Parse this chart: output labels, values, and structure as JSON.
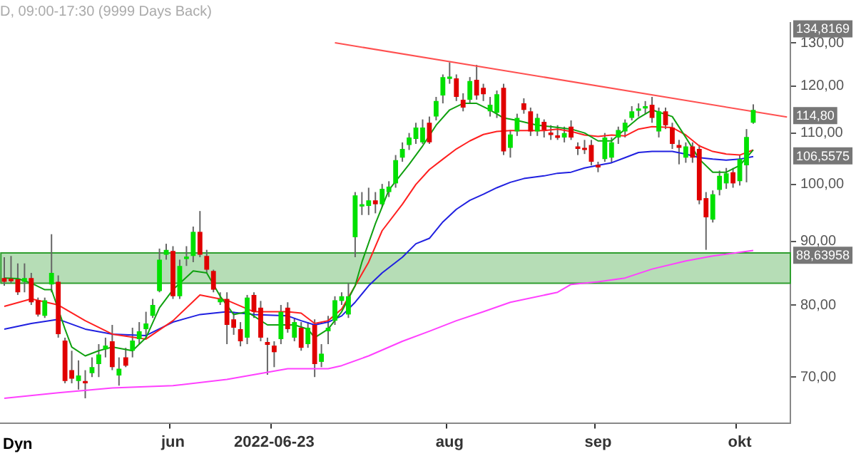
{
  "chart_data": {
    "type": "candlestick",
    "title": "D, 09:00-17:30 (9999 Days Back)",
    "log": true,
    "categories": [
      null,
      null,
      null,
      null,
      null,
      null,
      null,
      null,
      null,
      null,
      null,
      null,
      null,
      null,
      null,
      null,
      null,
      null,
      null,
      null,
      null,
      null,
      null,
      null,
      null,
      "jun",
      null,
      null,
      null,
      null,
      null,
      null,
      null,
      null,
      null,
      null,
      null,
      null,
      null,
      null,
      "2022-06-23",
      null,
      null,
      null,
      null,
      null,
      null,
      null,
      null,
      null,
      null,
      null,
      null,
      null,
      null,
      null,
      null,
      null,
      null,
      null,
      null,
      null,
      null,
      null,
      null,
      null,
      "aug",
      null,
      null,
      null,
      null,
      null,
      null,
      null,
      null,
      null,
      null,
      null,
      null,
      null,
      null,
      null,
      null,
      null,
      null,
      null,
      null,
      null,
      "sep",
      null,
      null,
      null,
      null,
      null,
      null,
      null,
      null,
      null,
      null,
      null,
      null,
      null,
      null,
      null,
      null,
      null,
      null,
      null,
      null,
      "okt",
      null,
      null,
      null,
      null,
      null,
      null,
      null
    ],
    "ohlc": [
      [
        84.1,
        87.4,
        82.9,
        83.5
      ],
      [
        84.0,
        87.6,
        83.3,
        83.6
      ],
      [
        83.9,
        86.4,
        81.5,
        81.9
      ],
      [
        83.5,
        86.4,
        81.9,
        84.1
      ],
      [
        84.1,
        84.9,
        80.0,
        80.4
      ],
      [
        80.7,
        81.1,
        78.3,
        78.6
      ],
      [
        78.4,
        81.1,
        78.1,
        80.7
      ],
      [
        83.1,
        91.2,
        81.9,
        84.9
      ],
      [
        83.5,
        84.5,
        75.3,
        75.8
      ],
      [
        74.9,
        75.3,
        69.2,
        69.5
      ],
      [
        70.9,
        73.5,
        69.2,
        69.8
      ],
      [
        69.5,
        72.2,
        68.4,
        70.2
      ],
      [
        69.5,
        70.9,
        67.3,
        69.2
      ],
      [
        70.5,
        72.6,
        70.0,
        71.3
      ],
      [
        71.7,
        74.4,
        70.0,
        73.0
      ],
      [
        73.7,
        75.3,
        72.6,
        74.2
      ],
      [
        74.8,
        77.1,
        70.9,
        71.3
      ],
      [
        70.2,
        72.6,
        68.9,
        71.1
      ],
      [
        72.6,
        73.9,
        71.3,
        71.5
      ],
      [
        73.5,
        76.7,
        72.6,
        74.9
      ],
      [
        75.1,
        77.5,
        74.4,
        76.2
      ],
      [
        76.5,
        79.0,
        75.3,
        77.3
      ],
      [
        78.4,
        80.9,
        78.1,
        80.0
      ],
      [
        82.1,
        88.8,
        81.9,
        87.0
      ],
      [
        87.8,
        89.6,
        87.0,
        88.6
      ],
      [
        88.4,
        89.2,
        80.9,
        81.3
      ],
      [
        81.3,
        87.0,
        80.9,
        86.0
      ],
      [
        87.1,
        89.2,
        86.0,
        87.5
      ],
      [
        87.6,
        92.5,
        86.6,
        91.6
      ],
      [
        91.6,
        95.2,
        87.4,
        87.8
      ],
      [
        87.6,
        88.6,
        84.9,
        85.4
      ],
      [
        85.2,
        85.4,
        81.9,
        82.3
      ],
      [
        80.4,
        81.9,
        80.0,
        80.9
      ],
      [
        80.9,
        81.9,
        74.4,
        77.1
      ],
      [
        77.9,
        79.0,
        75.7,
        76.7
      ],
      [
        76.5,
        77.5,
        74.1,
        74.8
      ],
      [
        75.3,
        81.5,
        74.4,
        81.1
      ],
      [
        81.5,
        81.9,
        78.1,
        79.0
      ],
      [
        79.6,
        80.6,
        74.8,
        75.3
      ],
      [
        74.7,
        75.3,
        70.3,
        74.3
      ],
      [
        74.2,
        74.8,
        71.3,
        73.3
      ],
      [
        75.1,
        80.0,
        74.4,
        79.0
      ],
      [
        79.6,
        80.4,
        76.0,
        76.5
      ],
      [
        75.3,
        78.1,
        74.8,
        77.5
      ],
      [
        76.7,
        77.5,
        73.5,
        73.9
      ],
      [
        74.4,
        77.5,
        73.9,
        76.7
      ],
      [
        77.1,
        77.9,
        70.0,
        71.7
      ],
      [
        72.0,
        74.4,
        71.3,
        73.1
      ],
      [
        76.2,
        78.4,
        74.4,
        76.7
      ],
      [
        77.7,
        81.3,
        77.1,
        80.7
      ],
      [
        80.6,
        81.9,
        80.0,
        81.3
      ],
      [
        78.6,
        83.3,
        78.1,
        81.3
      ],
      [
        90.7,
        98.6,
        87.4,
        98.0
      ],
      [
        96.0,
        98.6,
        94.5,
        96.4
      ],
      [
        96.1,
        99.4,
        94.5,
        97.1
      ],
      [
        97.1,
        98.6,
        94.8,
        96.4
      ],
      [
        96.4,
        100.1,
        95.9,
        99.2
      ],
      [
        98.6,
        100.6,
        97.7,
        99.6
      ],
      [
        100.2,
        105.6,
        99.4,
        104.6
      ],
      [
        105.1,
        108.1,
        104.3,
        106.8
      ],
      [
        107.6,
        110.0,
        106.6,
        109.1
      ],
      [
        108.8,
        112.1,
        107.8,
        111.1
      ],
      [
        108.1,
        112.8,
        107.8,
        111.1
      ],
      [
        112.1,
        113.4,
        107.8,
        108.1
      ],
      [
        113.4,
        117.6,
        112.6,
        116.7
      ],
      [
        117.9,
        122.6,
        116.2,
        122.0
      ],
      [
        121.6,
        125.4,
        120.5,
        122.1
      ],
      [
        121.7,
        122.6,
        116.7,
        117.6
      ],
      [
        117.0,
        118.4,
        114.5,
        115.3
      ],
      [
        117.0,
        122.0,
        116.2,
        121.1
      ],
      [
        121.4,
        124.8,
        117.0,
        117.9
      ],
      [
        119.6,
        120.5,
        116.7,
        118.2
      ],
      [
        114.5,
        117.6,
        113.4,
        115.9
      ],
      [
        114.2,
        119.0,
        113.1,
        118.2
      ],
      [
        119.6,
        120.5,
        105.6,
        106.3
      ],
      [
        107.0,
        110.6,
        105.1,
        109.7
      ],
      [
        110.3,
        114.0,
        109.4,
        113.1
      ],
      [
        116.2,
        117.3,
        114.0,
        114.8
      ],
      [
        114.5,
        115.3,
        109.4,
        110.3
      ],
      [
        110.3,
        114.0,
        109.4,
        113.1
      ],
      [
        112.3,
        112.8,
        109.1,
        110.6
      ],
      [
        110.1,
        111.6,
        108.6,
        109.6
      ],
      [
        109.5,
        111.6,
        108.6,
        109.0
      ],
      [
        109.1,
        111.3,
        108.1,
        110.0
      ],
      [
        111.3,
        112.6,
        108.6,
        109.1
      ],
      [
        107.3,
        108.1,
        105.6,
        106.8
      ],
      [
        107.0,
        108.6,
        105.8,
        106.6
      ],
      [
        107.6,
        108.6,
        103.6,
        104.3
      ],
      [
        103.7,
        104.3,
        102.3,
        103.2
      ],
      [
        104.8,
        110.0,
        104.3,
        109.1
      ],
      [
        105.1,
        109.1,
        104.1,
        108.1
      ],
      [
        109.1,
        111.3,
        107.8,
        110.6
      ],
      [
        110.3,
        112.8,
        109.1,
        112.1
      ],
      [
        113.1,
        115.6,
        112.6,
        114.5
      ],
      [
        114.6,
        116.2,
        113.4,
        115.1
      ],
      [
        115.1,
        116.7,
        113.9,
        115.6
      ],
      [
        115.9,
        117.6,
        112.1,
        113.1
      ],
      [
        110.3,
        115.3,
        109.1,
        114.5
      ],
      [
        114.5,
        115.3,
        110.8,
        111.6
      ],
      [
        111.1,
        112.1,
        106.8,
        107.8
      ],
      [
        107.6,
        108.6,
        103.8,
        107.0
      ],
      [
        105.1,
        108.1,
        104.1,
        107.3
      ],
      [
        107.3,
        108.1,
        104.1,
        105.1
      ],
      [
        106.8,
        107.6,
        96.4,
        97.1
      ],
      [
        97.5,
        98.6,
        88.6,
        94.1
      ],
      [
        93.7,
        98.9,
        93.2,
        98.2
      ],
      [
        99.0,
        102.6,
        98.0,
        101.6
      ],
      [
        100.2,
        103.1,
        99.2,
        102.1
      ],
      [
        102.3,
        103.1,
        99.4,
        100.2
      ],
      [
        100.6,
        105.6,
        99.8,
        104.8
      ],
      [
        103.6,
        110.8,
        100.4,
        109.2
      ],
      [
        112.1,
        116.0,
        111.9,
        114.8
      ],
      null,
      null,
      null,
      null,
      null
    ],
    "colors": [
      "#e00000",
      "#e00000",
      "#e00000",
      "#00e000",
      "#e00000",
      "#e00000",
      "#00e000",
      "#00e000",
      "#e00000",
      "#e00000",
      "#e00000",
      "#00e000",
      "#e00000",
      "#00e000",
      "#00e000",
      "#00e000",
      "#e00000",
      "#00e000",
      "#e00000",
      "#00e000",
      "#00e000",
      "#00e000",
      "#00e000",
      "#00e000",
      "#00e000",
      "#e00000",
      "#00e000",
      "#00e000",
      "#00e000",
      "#e00000",
      "#e00000",
      "#e00000",
      "#00e000",
      "#e00000",
      "#e00000",
      "#e00000",
      "#00e000",
      "#e00000",
      "#e00000",
      "#e00000",
      "#e00000",
      "#00e000",
      "#e00000",
      "#00e000",
      "#e00000",
      "#00e000",
      "#e00000",
      "#00e000",
      "#00e000",
      "#00e000",
      "#00e000",
      "#00e000",
      "#00e000",
      "#00e000",
      "#00e000",
      "#e00000",
      "#00e000",
      "#00e000",
      "#00e000",
      "#00e000",
      "#00e000",
      "#00e000",
      "#00e000",
      "#e00000",
      "#00e000",
      "#00e000",
      "#00e000",
      "#e00000",
      "#e00000",
      "#00e000",
      "#e00000",
      "#e00000",
      "#00e000",
      "#00e000",
      "#e00000",
      "#00e000",
      "#00e000",
      "#e00000",
      "#e00000",
      "#00e000",
      "#e00000",
      "#e00000",
      "#e00000",
      "#00e000",
      "#e00000",
      "#e00000",
      "#e00000",
      "#e00000",
      "#e00000",
      "#00e000",
      "#00e000",
      "#00e000",
      "#00e000",
      "#00e000",
      "#00e000",
      "#00e000",
      "#e00000",
      "#00e000",
      "#e00000",
      "#e00000",
      "#e00000",
      "#00e000",
      "#e00000",
      "#e00000",
      "#e00000",
      "#00e000",
      "#00e000",
      "#00e000",
      "#e00000",
      "#00e000",
      "#00e000",
      "#00e000",
      null,
      null,
      null,
      null,
      null
    ],
    "series": [
      {
        "type": "line",
        "color": "#10a010",
        "values": [
          84.1,
          null,
          84.0,
          null,
          83.3,
          null,
          82.3,
          82.3,
          null,
          76.5,
          74.0,
          null,
          72.8,
          null,
          73.5,
          null,
          74.0,
          null,
          null,
          73.5,
          null,
          75.3,
          null,
          79.6,
          null,
          82.3,
          null,
          null,
          85.2,
          null,
          84.9,
          null,
          81.3,
          null,
          78.6,
          null,
          79.0,
          null,
          null,
          77.1,
          null,
          77.1,
          null,
          77.1,
          null,
          76.5,
          75.3,
          null,
          76.5,
          null,
          79.0,
          null,
          82.9,
          86.6,
          null,
          93.0,
          null,
          99.0,
          null,
          null,
          103.8,
          null,
          107.4,
          null,
          111.6,
          null,
          114.8,
          null,
          116.2,
          null,
          116.2,
          null,
          114.8,
          null,
          113.1,
          null,
          112.6,
          null,
          null,
          111.6,
          null,
          111.3,
          null,
          null,
          110.8,
          null,
          110.0,
          null,
          108.4,
          null,
          108.4,
          null,
          110.8,
          null,
          113.1,
          null,
          114.8,
          null,
          null,
          113.4,
          null,
          109.1,
          null,
          104.8,
          null,
          102.3,
          null,
          102.3,
          null,
          103.6,
          null,
          106.6,
          null,
          null,
          null,
          null,
          null
        ]
      },
      {
        "type": "line",
        "color": "#ff2020",
        "values": [
          79.8,
          null,
          null,
          null,
          80.9,
          null,
          null,
          null,
          80.0,
          null,
          null,
          null,
          77.7,
          null,
          null,
          null,
          75.8,
          null,
          null,
          null,
          null,
          75.1,
          null,
          null,
          null,
          77.7,
          null,
          null,
          null,
          81.5,
          null,
          null,
          null,
          80.7,
          null,
          null,
          null,
          79.0,
          null,
          null,
          null,
          null,
          79.0,
          null,
          78.8,
          null,
          77.3,
          null,
          77.7,
          null,
          79.4,
          null,
          82.9,
          null,
          86.6,
          null,
          91.8,
          null,
          null,
          96.4,
          null,
          100.0,
          null,
          102.8,
          null,
          104.8,
          null,
          106.8,
          null,
          108.4,
          null,
          109.7,
          null,
          110.3,
          null,
          110.5,
          null,
          110.5,
          null,
          null,
          110.5,
          null,
          110.8,
          null,
          110.3,
          null,
          109.6,
          null,
          109.3,
          null,
          109.6,
          null,
          109.4,
          null,
          110.8,
          null,
          111.3,
          null,
          null,
          111.1,
          null,
          109.6,
          null,
          107.4,
          null,
          106.3,
          null,
          105.8,
          null,
          105.6,
          null,
          106.6,
          null,
          null,
          null,
          null,
          null
        ]
      },
      {
        "type": "line",
        "color": "#2020e0",
        "values": [
          76.5,
          null,
          null,
          null,
          77.3,
          null,
          null,
          null,
          77.9,
          null,
          null,
          null,
          76.5,
          null,
          null,
          null,
          75.8,
          null,
          null,
          null,
          null,
          75.6,
          null,
          null,
          null,
          77.5,
          null,
          null,
          null,
          78.6,
          null,
          null,
          null,
          79.0,
          null,
          null,
          null,
          78.6,
          null,
          null,
          null,
          null,
          78.4,
          null,
          77.7,
          null,
          77.1,
          null,
          77.5,
          null,
          78.4,
          null,
          80.4,
          null,
          82.9,
          null,
          84.9,
          null,
          null,
          87.4,
          null,
          89.6,
          null,
          90.5,
          null,
          93.3,
          null,
          95.5,
          null,
          97.1,
          null,
          98.2,
          null,
          99.4,
          null,
          100.4,
          null,
          101.1,
          null,
          null,
          101.6,
          null,
          102.1,
          null,
          102.3,
          null,
          103.1,
          null,
          103.6,
          null,
          104.1,
          null,
          105.1,
          null,
          106.1,
          null,
          106.3,
          null,
          null,
          106.3,
          null,
          105.8,
          null,
          105.1,
          null,
          104.8,
          null,
          104.6,
          null,
          104.8,
          null,
          105.3,
          null,
          null,
          null,
          null,
          null
        ]
      },
      {
        "type": "line",
        "color": "#ff40ff",
        "values": [
          67.3,
          null,
          null,
          null,
          null,
          null,
          null,
          null,
          68.0,
          null,
          null,
          null,
          null,
          null,
          null,
          null,
          68.6,
          null,
          null,
          null,
          null,
          null,
          null,
          null,
          null,
          68.9,
          null,
          null,
          null,
          null,
          null,
          null,
          null,
          69.7,
          null,
          null,
          null,
          null,
          null,
          null,
          null,
          null,
          71.1,
          null,
          null,
          null,
          null,
          null,
          71.1,
          null,
          71.5,
          null,
          null,
          null,
          72.8,
          null,
          null,
          null,
          null,
          74.8,
          null,
          null,
          null,
          76.2,
          null,
          null,
          null,
          77.7,
          null,
          null,
          null,
          79.0,
          null,
          null,
          null,
          80.4,
          null,
          null,
          null,
          null,
          null,
          null,
          81.9,
          null,
          83.1,
          null,
          null,
          null,
          83.5,
          null,
          null,
          null,
          84.1,
          null,
          null,
          null,
          85.5,
          null,
          null,
          null,
          null,
          86.8,
          null,
          null,
          null,
          87.6,
          null,
          null,
          null,
          null,
          null,
          88.5,
          null,
          null,
          null,
          null,
          null
        ]
      },
      {
        "type": "line",
        "color": "#ff5050",
        "values": [
          null,
          null,
          null,
          null,
          null,
          null,
          null,
          null,
          null,
          null,
          null,
          null,
          null,
          null,
          null,
          null,
          null,
          null,
          null,
          null,
          null,
          null,
          null,
          null,
          null,
          null,
          null,
          null,
          null,
          null,
          null,
          null,
          null,
          null,
          null,
          null,
          null,
          null,
          null,
          null,
          null,
          null,
          null,
          null,
          null,
          null,
          null,
          null,
          null,
          130.0,
          null,
          null,
          null,
          null,
          null,
          null,
          null,
          null,
          null,
          null,
          null,
          null,
          null,
          null,
          null,
          null,
          null,
          null,
          null,
          null,
          null,
          null,
          null,
          null,
          null,
          null,
          null,
          null,
          null,
          null,
          null,
          null,
          null,
          null,
          null,
          null,
          null,
          null,
          null,
          null,
          null,
          null,
          null,
          null,
          null,
          null,
          null,
          null,
          null,
          null,
          null,
          null,
          null,
          null,
          null,
          null,
          null,
          null,
          null,
          null,
          null,
          null,
          null,
          null,
          null,
          null,
          113.3
        ]
      }
    ],
    "bands": [
      {
        "axis": "y",
        "from": 83.3,
        "to": 88.1,
        "color": "#2e9e2e"
      }
    ],
    "ylim": [
      64.3,
      134.9
    ],
    "yticks": [
      {
        "value": 70,
        "label": "70,00"
      },
      {
        "value": 80,
        "label": "80,00"
      },
      {
        "value": 90,
        "label": "90,00"
      },
      {
        "value": 100,
        "label": "100,00"
      },
      {
        "value": 110,
        "label": "110,00"
      },
      {
        "value": 120,
        "label": "120,00"
      },
      {
        "value": 130,
        "label": "130,00"
      }
    ],
    "annotations": [
      "134,8169",
      "114,80",
      "106,5575",
      "88,63958",
      "Dyn"
    ]
  }
}
